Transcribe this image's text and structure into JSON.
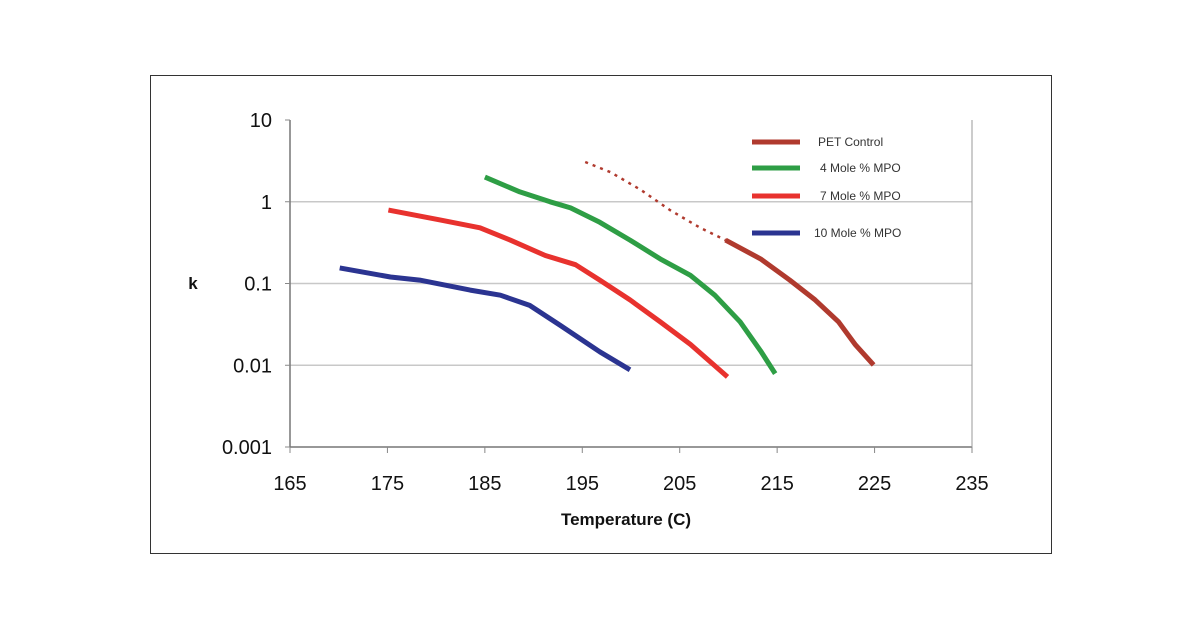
{
  "chart_data": {
    "type": "line",
    "title": "",
    "xlabel": "Temperature (C)",
    "ylabel": "k",
    "xlim": [
      165,
      235
    ],
    "ylim": [
      0.001,
      10
    ],
    "yscale": "log",
    "xticks": [
      "165",
      "175",
      "185",
      "195",
      "205",
      "215",
      "225",
      "235"
    ],
    "yticks": [
      "10",
      "1",
      "0.1",
      "0.01",
      "0.001"
    ],
    "grid": "horizontal",
    "legend_position": "top-right",
    "series": [
      {
        "name": "PET Control",
        "color": "#b03a2e",
        "dashed_points": [
          [
            195.3,
            3.06
          ],
          [
            197.9,
            2.3
          ],
          [
            201,
            1.4
          ],
          [
            204,
            0.79
          ],
          [
            207.1,
            0.48
          ],
          [
            209.7,
            0.34
          ]
        ],
        "points": [
          [
            209.7,
            0.34
          ],
          [
            213.3,
            0.2
          ],
          [
            216.3,
            0.11
          ],
          [
            218.9,
            0.063
          ],
          [
            221.3,
            0.034
          ],
          [
            223,
            0.018
          ],
          [
            224.9,
            0.0101
          ]
        ]
      },
      {
        "name": "4 Mole % MPO",
        "color": "#2e9e45",
        "points": [
          [
            185,
            2.0
          ],
          [
            188.6,
            1.32
          ],
          [
            191.7,
            1.0
          ],
          [
            193.8,
            0.84
          ],
          [
            196.8,
            0.56
          ],
          [
            199.9,
            0.34
          ],
          [
            203,
            0.2
          ],
          [
            206.1,
            0.126
          ],
          [
            208.6,
            0.072
          ],
          [
            211.2,
            0.034
          ],
          [
            213.3,
            0.015
          ],
          [
            214.8,
            0.0079
          ]
        ]
      },
      {
        "name": "7 Mole % MPO",
        "color": "#e8322e",
        "points": [
          [
            175.1,
            0.79
          ],
          [
            180.4,
            0.6
          ],
          [
            184.5,
            0.48
          ],
          [
            187.6,
            0.34
          ],
          [
            191.2,
            0.22
          ],
          [
            194.3,
            0.17
          ],
          [
            196.8,
            0.11
          ],
          [
            199.9,
            0.063
          ],
          [
            203,
            0.034
          ],
          [
            206.1,
            0.018
          ],
          [
            209.9,
            0.0072
          ]
        ]
      },
      {
        "name": "10 Mole % MPO",
        "color": "#2b3491",
        "points": [
          [
            170.1,
            0.155
          ],
          [
            175.3,
            0.12
          ],
          [
            178.3,
            0.11
          ],
          [
            183.5,
            0.083
          ],
          [
            186.6,
            0.072
          ],
          [
            189.6,
            0.054
          ],
          [
            192.7,
            0.031
          ],
          [
            196.8,
            0.0146
          ],
          [
            199.9,
            0.0088
          ]
        ]
      }
    ]
  }
}
